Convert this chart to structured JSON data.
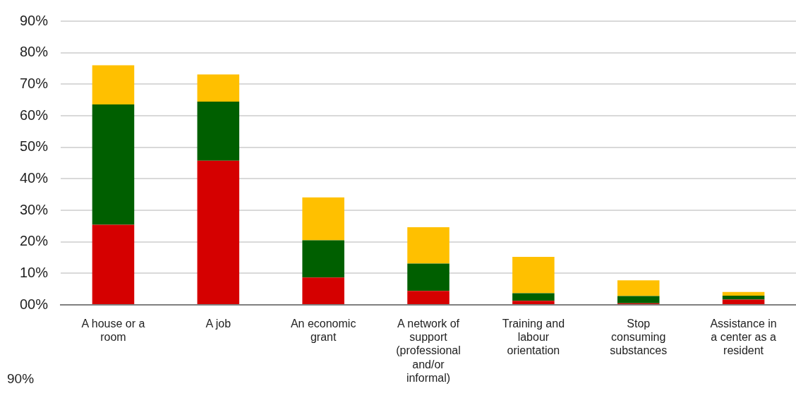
{
  "chart_data": {
    "type": "bar",
    "stacked": true,
    "categories": [
      "A house or a room",
      "A job",
      "An economic grant",
      "A network of support (professional and/or informal)",
      "Training and labour orientation",
      "Stop consuming substances",
      "Assistance in a center as a resident"
    ],
    "series": [
      {
        "color": "#d50000",
        "values": [
          25.4,
          45.7,
          8.7,
          4.4,
          1.3,
          0.5,
          1.7
        ]
      },
      {
        "color": "#005f00",
        "values": [
          38.2,
          18.8,
          11.8,
          8.7,
          2.4,
          2.3,
          1.2
        ]
      },
      {
        "color": "#ffc000",
        "values": [
          12.4,
          8.6,
          13.6,
          11.5,
          11.5,
          5.0,
          1.2
        ]
      }
    ],
    "ylim": [
      0,
      90
    ],
    "yticks": [
      {
        "value": 0,
        "label": "00%"
      },
      {
        "value": 10,
        "label": "10%"
      },
      {
        "value": 20,
        "label": "20%"
      },
      {
        "value": 30,
        "label": "30%"
      },
      {
        "value": 40,
        "label": "40%"
      },
      {
        "value": 50,
        "label": "50%"
      },
      {
        "value": 60,
        "label": "60%"
      },
      {
        "value": 70,
        "label": "70%"
      },
      {
        "value": 80,
        "label": "80%"
      },
      {
        "value": 90,
        "label": "90%"
      }
    ],
    "grid": "y",
    "legend": false,
    "annotations": [
      "90%"
    ]
  }
}
